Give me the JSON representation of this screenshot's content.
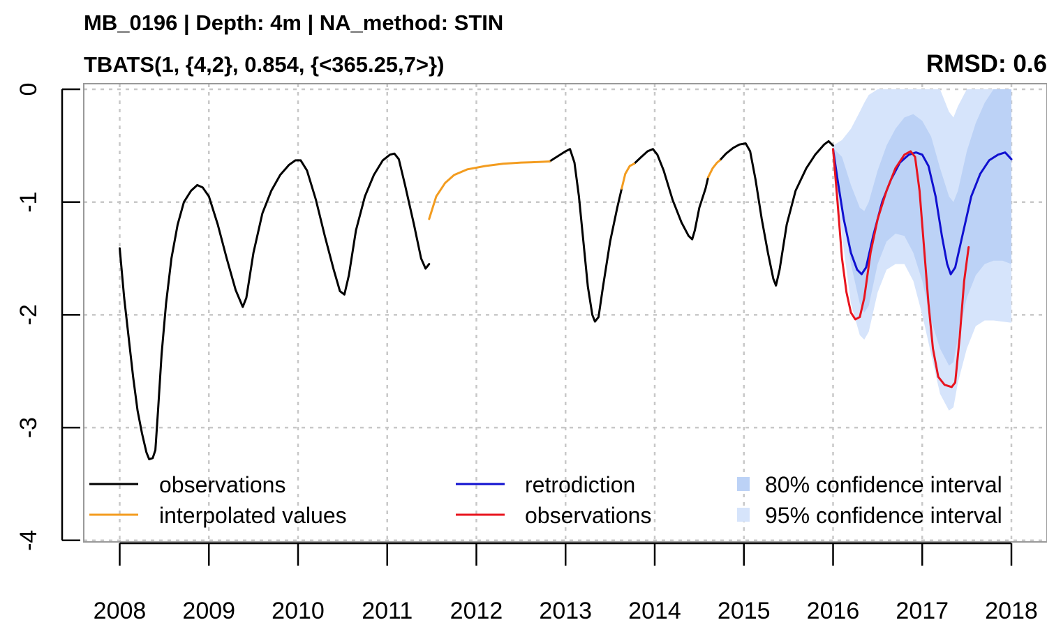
{
  "chart_data": {
    "type": "line",
    "title": "MB_0196 | Depth: 4m | NA_method: STIN",
    "subtitle": "TBATS(1, {4,2}, 0.854, {<365.25,7>})",
    "annotation": "RMSD: 0.6",
    "xlabel": "",
    "ylabel": "",
    "xlim": [
      2007.6,
      2018.4
    ],
    "ylim": [
      -4,
      0
    ],
    "x_ticks": [
      2008,
      2009,
      2010,
      2011,
      2012,
      2013,
      2014,
      2015,
      2016,
      2017,
      2018
    ],
    "x_tick_labels": [
      "2008",
      "2009",
      "2010",
      "2011",
      "2012",
      "2013",
      "2014",
      "2015",
      "2016",
      "2017",
      "2018"
    ],
    "y_ticks": [
      0,
      -1,
      -2,
      -3,
      -4
    ],
    "y_tick_labels": [
      "0",
      "-1",
      "-2",
      "-3",
      "-4"
    ],
    "grid": true,
    "legend_position": "bottom",
    "series": [
      {
        "name": "observations",
        "color": "#000000",
        "segments": [
          [
            [
              2008.0,
              -1.41
            ],
            [
              2008.05,
              -1.85
            ],
            [
              2008.1,
              -2.2
            ],
            [
              2008.15,
              -2.55
            ],
            [
              2008.2,
              -2.85
            ],
            [
              2008.25,
              -3.05
            ],
            [
              2008.3,
              -3.22
            ],
            [
              2008.33,
              -3.28
            ],
            [
              2008.37,
              -3.27
            ],
            [
              2008.4,
              -3.2
            ],
            [
              2008.43,
              -2.85
            ],
            [
              2008.47,
              -2.35
            ],
            [
              2008.52,
              -1.9
            ],
            [
              2008.58,
              -1.5
            ],
            [
              2008.65,
              -1.2
            ],
            [
              2008.72,
              -1.0
            ],
            [
              2008.8,
              -0.9
            ],
            [
              2008.87,
              -0.85
            ],
            [
              2008.93,
              -0.87
            ],
            [
              2009.0,
              -0.95
            ],
            [
              2009.1,
              -1.2
            ],
            [
              2009.2,
              -1.5
            ],
            [
              2009.3,
              -1.78
            ],
            [
              2009.38,
              -1.93
            ],
            [
              2009.42,
              -1.85
            ],
            [
              2009.5,
              -1.45
            ],
            [
              2009.6,
              -1.1
            ],
            [
              2009.7,
              -0.9
            ],
            [
              2009.8,
              -0.76
            ],
            [
              2009.9,
              -0.67
            ],
            [
              2009.97,
              -0.63
            ],
            [
              2010.03,
              -0.63
            ],
            [
              2010.1,
              -0.72
            ],
            [
              2010.2,
              -0.98
            ],
            [
              2010.3,
              -1.3
            ],
            [
              2010.4,
              -1.6
            ],
            [
              2010.47,
              -1.79
            ],
            [
              2010.52,
              -1.82
            ],
            [
              2010.57,
              -1.65
            ],
            [
              2010.65,
              -1.25
            ],
            [
              2010.75,
              -0.95
            ],
            [
              2010.85,
              -0.76
            ],
            [
              2010.95,
              -0.63
            ],
            [
              2011.03,
              -0.58
            ],
            [
              2011.08,
              -0.57
            ],
            [
              2011.13,
              -0.62
            ],
            [
              2011.2,
              -0.85
            ],
            [
              2011.3,
              -1.2
            ],
            [
              2011.38,
              -1.5
            ],
            [
              2011.43,
              -1.59
            ],
            [
              2011.47,
              -1.55
            ]
          ],
          [
            [
              2012.82,
              -0.64
            ],
            [
              2012.9,
              -0.6
            ],
            [
              2013.0,
              -0.55
            ],
            [
              2013.05,
              -0.53
            ],
            [
              2013.1,
              -0.65
            ],
            [
              2013.15,
              -0.95
            ],
            [
              2013.2,
              -1.35
            ],
            [
              2013.25,
              -1.75
            ],
            [
              2013.3,
              -2.0
            ],
            [
              2013.33,
              -2.06
            ],
            [
              2013.37,
              -2.02
            ],
            [
              2013.42,
              -1.75
            ],
            [
              2013.5,
              -1.35
            ],
            [
              2013.58,
              -1.05
            ],
            [
              2013.63,
              -0.88
            ]
          ],
          [
            [
              2013.77,
              -0.66
            ],
            [
              2013.85,
              -0.6
            ],
            [
              2013.92,
              -0.55
            ],
            [
              2013.98,
              -0.53
            ],
            [
              2014.03,
              -0.58
            ],
            [
              2014.1,
              -0.72
            ],
            [
              2014.2,
              -0.98
            ],
            [
              2014.3,
              -1.18
            ],
            [
              2014.38,
              -1.3
            ],
            [
              2014.42,
              -1.33
            ],
            [
              2014.45,
              -1.25
            ],
            [
              2014.5,
              -1.05
            ],
            [
              2014.57,
              -0.88
            ],
            [
              2014.6,
              -0.78
            ]
          ],
          [
            [
              2014.73,
              -0.63
            ],
            [
              2014.8,
              -0.57
            ],
            [
              2014.88,
              -0.52
            ],
            [
              2014.95,
              -0.49
            ],
            [
              2015.02,
              -0.48
            ],
            [
              2015.07,
              -0.55
            ],
            [
              2015.13,
              -0.8
            ],
            [
              2015.2,
              -1.15
            ],
            [
              2015.27,
              -1.45
            ],
            [
              2015.33,
              -1.68
            ],
            [
              2015.36,
              -1.74
            ],
            [
              2015.4,
              -1.6
            ],
            [
              2015.48,
              -1.2
            ],
            [
              2015.58,
              -0.9
            ],
            [
              2015.7,
              -0.7
            ],
            [
              2015.8,
              -0.58
            ],
            [
              2015.9,
              -0.49
            ],
            [
              2015.95,
              -0.46
            ],
            [
              2016.0,
              -0.5
            ]
          ]
        ]
      },
      {
        "name": "interpolated values",
        "color": "#f39c1f",
        "segments": [
          [
            [
              2011.47,
              -1.15
            ],
            [
              2011.55,
              -0.95
            ],
            [
              2011.65,
              -0.83
            ],
            [
              2011.75,
              -0.76
            ],
            [
              2011.9,
              -0.71
            ],
            [
              2012.1,
              -0.68
            ],
            [
              2012.3,
              -0.66
            ],
            [
              2012.5,
              -0.65
            ],
            [
              2012.7,
              -0.645
            ],
            [
              2012.82,
              -0.64
            ]
          ],
          [
            [
              2013.63,
              -0.88
            ],
            [
              2013.67,
              -0.75
            ],
            [
              2013.72,
              -0.68
            ],
            [
              2013.77,
              -0.66
            ]
          ],
          [
            [
              2014.6,
              -0.78
            ],
            [
              2014.65,
              -0.7
            ],
            [
              2014.7,
              -0.65
            ],
            [
              2014.73,
              -0.63
            ]
          ]
        ]
      },
      {
        "name": "retrodiction",
        "color": "#1010d0",
        "segments": [
          [
            [
              2016.0,
              -0.53
            ],
            [
              2016.05,
              -0.8
            ],
            [
              2016.12,
              -1.15
            ],
            [
              2016.2,
              -1.45
            ],
            [
              2016.27,
              -1.6
            ],
            [
              2016.32,
              -1.64
            ],
            [
              2016.37,
              -1.58
            ],
            [
              2016.45,
              -1.3
            ],
            [
              2016.55,
              -1.0
            ],
            [
              2016.65,
              -0.8
            ],
            [
              2016.75,
              -0.65
            ],
            [
              2016.85,
              -0.58
            ],
            [
              2016.93,
              -0.56
            ],
            [
              2017.0,
              -0.58
            ],
            [
              2017.07,
              -0.68
            ],
            [
              2017.15,
              -0.95
            ],
            [
              2017.22,
              -1.3
            ],
            [
              2017.28,
              -1.55
            ],
            [
              2017.32,
              -1.64
            ],
            [
              2017.37,
              -1.58
            ],
            [
              2017.45,
              -1.3
            ],
            [
              2017.55,
              -0.95
            ],
            [
              2017.65,
              -0.75
            ],
            [
              2017.75,
              -0.63
            ],
            [
              2017.85,
              -0.58
            ],
            [
              2017.93,
              -0.56
            ],
            [
              2018.0,
              -0.62
            ]
          ]
        ]
      },
      {
        "name": "observations",
        "color": "#e8141e",
        "segments": [
          [
            [
              2016.0,
              -0.53
            ],
            [
              2016.05,
              -1.0
            ],
            [
              2016.1,
              -1.5
            ],
            [
              2016.15,
              -1.8
            ],
            [
              2016.2,
              -1.98
            ],
            [
              2016.25,
              -2.04
            ],
            [
              2016.3,
              -2.02
            ],
            [
              2016.35,
              -1.85
            ],
            [
              2016.42,
              -1.45
            ],
            [
              2016.5,
              -1.15
            ],
            [
              2016.6,
              -0.9
            ],
            [
              2016.7,
              -0.7
            ],
            [
              2016.8,
              -0.58
            ],
            [
              2016.87,
              -0.55
            ],
            [
              2016.92,
              -0.6
            ],
            [
              2016.97,
              -0.9
            ],
            [
              2017.02,
              -1.4
            ],
            [
              2017.07,
              -1.9
            ],
            [
              2017.12,
              -2.3
            ],
            [
              2017.18,
              -2.55
            ],
            [
              2017.25,
              -2.62
            ],
            [
              2017.33,
              -2.64
            ],
            [
              2017.37,
              -2.6
            ],
            [
              2017.42,
              -2.2
            ],
            [
              2017.47,
              -1.7
            ],
            [
              2017.52,
              -1.4
            ]
          ]
        ]
      }
    ],
    "confidence_intervals": [
      {
        "name": "95% confidence interval",
        "color": "#d6e4fb",
        "x": [
          2016.0,
          2016.1,
          2016.2,
          2016.3,
          2016.35,
          2016.4,
          2016.5,
          2016.6,
          2016.7,
          2016.8,
          2016.9,
          2017.0,
          2017.1,
          2017.2,
          2017.3,
          2017.35,
          2017.4,
          2017.5,
          2017.6,
          2017.7,
          2017.8,
          2017.9,
          2018.0
        ],
        "upper": [
          -0.5,
          -0.45,
          -0.35,
          -0.2,
          -0.12,
          -0.05,
          0,
          0,
          0,
          0,
          0,
          0,
          0,
          0,
          -0.2,
          -0.25,
          -0.15,
          0,
          0,
          0,
          0,
          0,
          0
        ],
        "lower": [
          -0.55,
          -1.3,
          -1.9,
          -2.18,
          -2.22,
          -2.15,
          -1.8,
          -1.6,
          -1.55,
          -1.55,
          -1.7,
          -2.0,
          -2.35,
          -2.7,
          -2.85,
          -2.82,
          -2.6,
          -2.3,
          -2.1,
          -2.05,
          -2.05,
          -2.06,
          -2.07
        ]
      },
      {
        "name": "80% confidence interval",
        "color": "#bcd2f6",
        "x": [
          2016.0,
          2016.1,
          2016.2,
          2016.3,
          2016.35,
          2016.4,
          2016.5,
          2016.6,
          2016.7,
          2016.8,
          2016.9,
          2017.0,
          2017.1,
          2017.2,
          2017.3,
          2017.35,
          2017.4,
          2017.5,
          2017.6,
          2017.7,
          2017.8,
          2017.9,
          2018.0
        ],
        "upper": [
          -0.52,
          -0.6,
          -0.85,
          -1.05,
          -1.08,
          -1.0,
          -0.72,
          -0.5,
          -0.35,
          -0.25,
          -0.22,
          -0.28,
          -0.42,
          -0.7,
          -0.95,
          -1.0,
          -0.9,
          -0.55,
          -0.3,
          -0.12,
          0,
          0,
          0
        ],
        "lower": [
          -0.54,
          -1.05,
          -1.55,
          -1.9,
          -1.98,
          -1.92,
          -1.55,
          -1.35,
          -1.28,
          -1.3,
          -1.45,
          -1.7,
          -2.05,
          -2.3,
          -2.45,
          -2.42,
          -2.2,
          -1.85,
          -1.65,
          -1.55,
          -1.52,
          -1.52,
          -1.55
        ]
      }
    ],
    "legend": [
      {
        "label": "observations",
        "type": "line",
        "color": "#000000"
      },
      {
        "label": "interpolated values",
        "type": "line",
        "color": "#f39c1f"
      },
      {
        "label": "retrodiction",
        "type": "line",
        "color": "#1010d0"
      },
      {
        "label": "observations",
        "type": "line",
        "color": "#e8141e"
      },
      {
        "label": "80% confidence interval",
        "type": "fill",
        "color": "#bcd2f6"
      },
      {
        "label": "95% confidence interval",
        "type": "fill",
        "color": "#d6e4fb"
      }
    ]
  }
}
